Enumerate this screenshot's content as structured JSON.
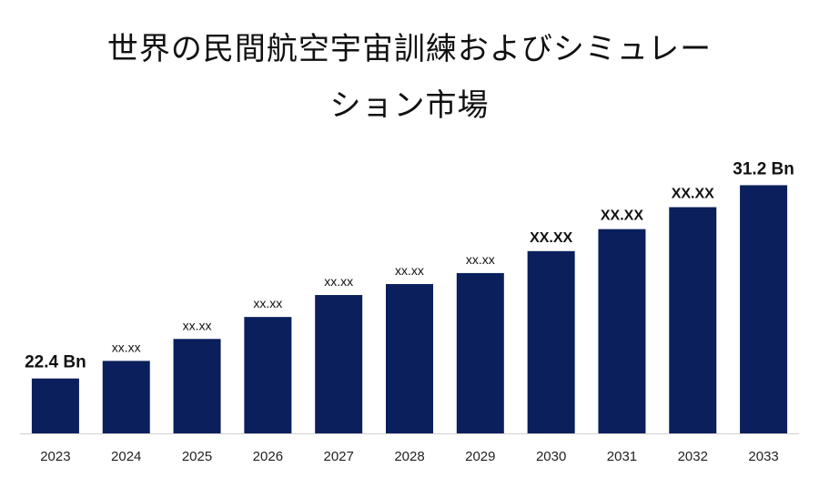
{
  "chart_data": {
    "type": "bar",
    "title_lines": [
      "世界の民間航空宇宙訓練およびシミュレー",
      "ション市場"
    ],
    "categories": [
      "2023",
      "2024",
      "2025",
      "2026",
      "2027",
      "2028",
      "2029",
      "2030",
      "2031",
      "2032",
      "2033"
    ],
    "values": [
      22.4,
      23.2,
      24.2,
      25.2,
      26.2,
      26.7,
      27.2,
      28.2,
      29.2,
      30.2,
      31.2
    ],
    "data_labels": [
      "22.4 Bn",
      "xx.xx",
      "xx.xx",
      "xx.xx",
      "xx.xx",
      "xx.xx",
      "xx.xx",
      "XX.XX",
      "XX.XX",
      "XX.XX",
      "31.2 Bn"
    ],
    "bar_color": "#0a1f5c",
    "ylim": [
      19.9,
      33.0
    ],
    "grid": false,
    "legend": "none"
  }
}
